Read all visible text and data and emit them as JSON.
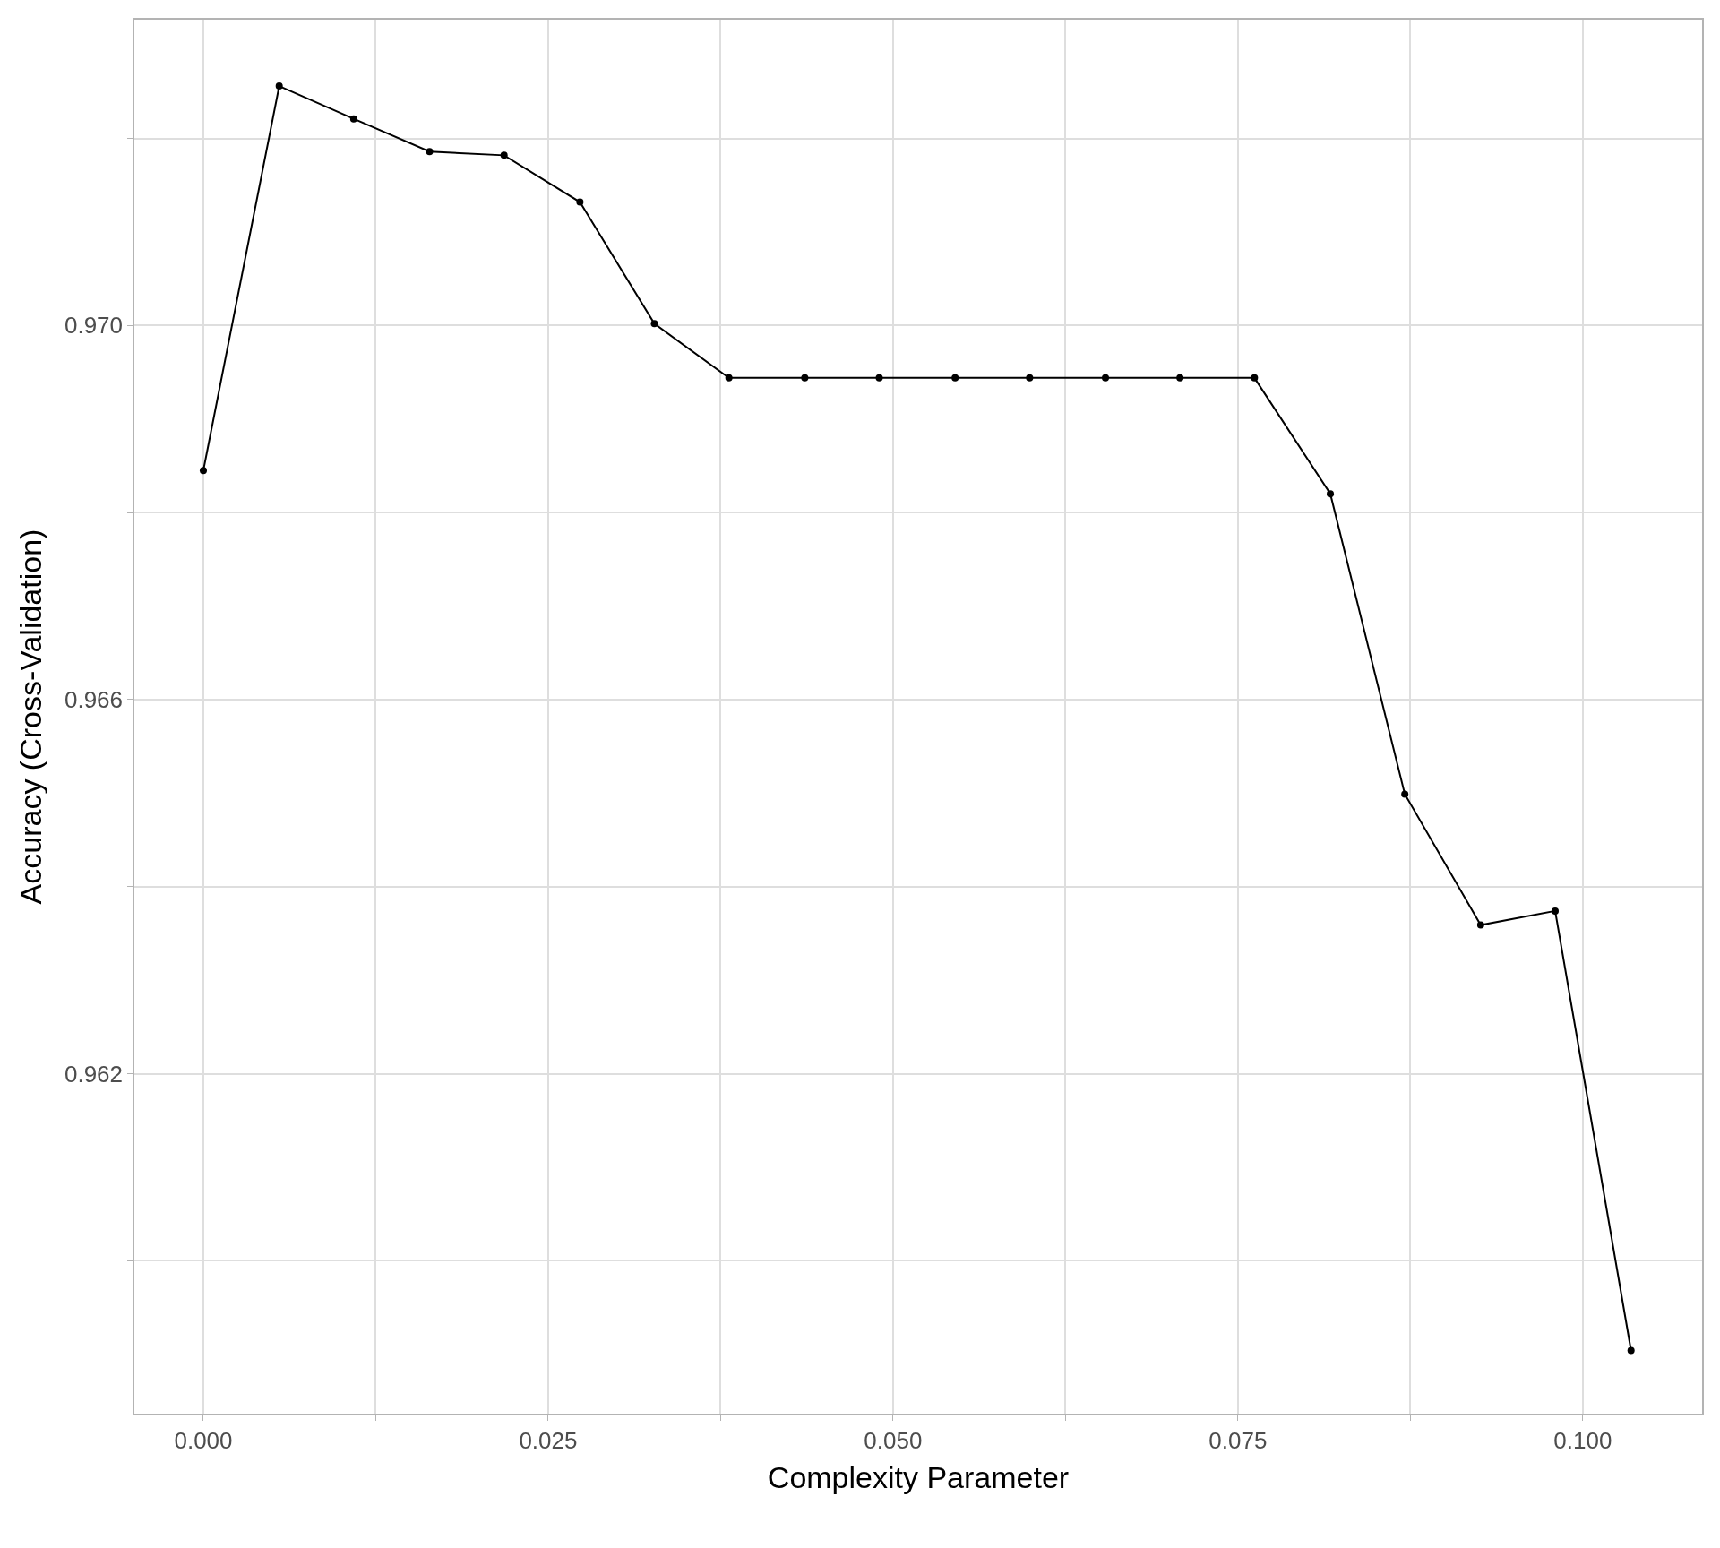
{
  "chart_data": {
    "type": "line",
    "xlabel": "Complexity Parameter",
    "ylabel": "Accuracy (Cross-Validation)",
    "x": [
      0,
      0.0055,
      0.0109,
      0.0164,
      0.0218,
      0.0273,
      0.0327,
      0.0381,
      0.0436,
      0.049,
      0.0545,
      0.0599,
      0.0654,
      0.0708,
      0.0762,
      0.0817,
      0.0871,
      0.0926,
      0.098,
      0.1035
    ],
    "series": [
      {
        "color": "#000000",
        "values": [
          0.96845,
          0.97256,
          0.97221,
          0.97186,
          0.97182,
          0.97132,
          0.97002,
          0.96944,
          0.96944,
          0.96944,
          0.96944,
          0.96944,
          0.96944,
          0.96944,
          0.96944,
          0.9682,
          0.96499,
          0.96359,
          0.96374,
          0.95904
        ]
      }
    ],
    "xlim": [
      -0.005,
      0.10865
    ],
    "ylim": [
      0.958365,
      0.97327
    ],
    "xticks": [
      {
        "value": 0,
        "label": "0.000"
      },
      {
        "value": 0.0125,
        "label": null
      },
      {
        "value": 0.025,
        "label": "0.025"
      },
      {
        "value": 0.0375,
        "label": null
      },
      {
        "value": 0.05,
        "label": "0.050"
      },
      {
        "value": 0.0625,
        "label": null
      },
      {
        "value": 0.075,
        "label": "0.075"
      },
      {
        "value": 0.0875,
        "label": null
      },
      {
        "value": 0.1,
        "label": "0.100"
      }
    ],
    "yticks": [
      {
        "value": 0.96,
        "label": null
      },
      {
        "value": 0.962,
        "label": "0.962"
      },
      {
        "value": 0.964,
        "label": null
      },
      {
        "value": 0.966,
        "label": "0.966"
      },
      {
        "value": 0.968,
        "label": null
      },
      {
        "value": 0.97,
        "label": "0.970"
      },
      {
        "value": 0.972,
        "label": null
      }
    ],
    "grid": true,
    "marker": "circle",
    "line_style": "solid",
    "legend": false
  }
}
